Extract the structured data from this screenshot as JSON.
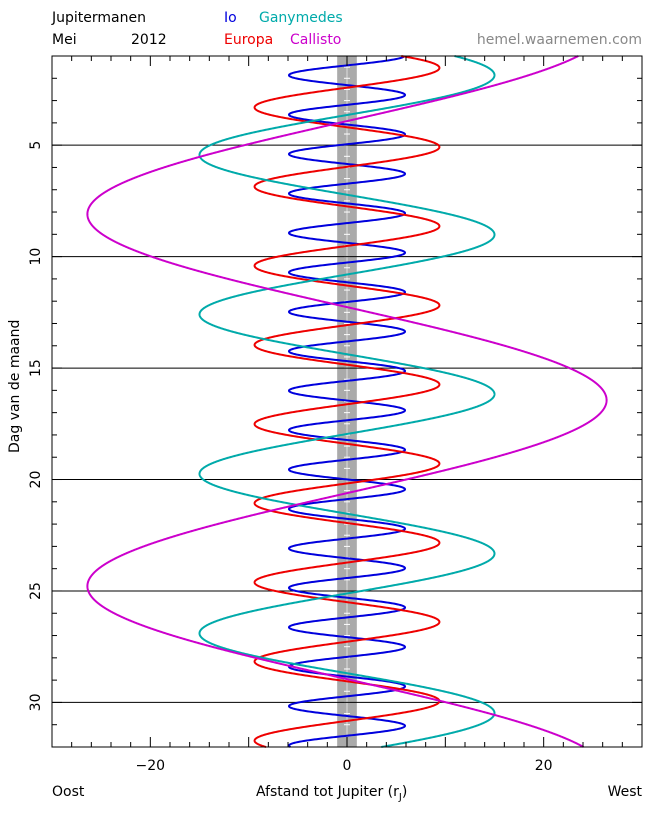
{
  "header": {
    "title": "Jupitermanen",
    "month": "Mei",
    "year": "2012",
    "website": "hemel.waarnemen.com"
  },
  "chart_data": {
    "type": "line",
    "xlabel": "Afstand tot Jupiter (r",
    "xlabel_sub": "J",
    "xlabel_close": ")",
    "ylabel": "Dag van de maand",
    "left_label": "Oost",
    "right_label": "West",
    "xlim": [
      -30,
      30
    ],
    "ylim": [
      32,
      1
    ],
    "xticks": [
      -20,
      0,
      20
    ],
    "yticks": [
      5,
      10,
      15,
      20,
      25,
      30
    ],
    "day_lines": [
      5,
      10,
      15,
      20,
      25,
      30
    ],
    "jupiter_band": [
      -1,
      1
    ],
    "series": [
      {
        "name": "Io",
        "color": "#0000dd",
        "amplitude": 5.9,
        "period_days": 1.769,
        "phase": 0.262
      },
      {
        "name": "Europa",
        "color": "#ee0000",
        "amplitude": 9.4,
        "period_days": 3.551,
        "phase": 0.1
      },
      {
        "name": "Ganymedes",
        "color": "#00aaaa",
        "amplitude": 15.0,
        "period_days": 7.155,
        "phase": 0.13
      },
      {
        "name": "Callisto",
        "color": "#cc00cc",
        "amplitude": 26.4,
        "period_days": 16.69,
        "phase": 0.325
      }
    ]
  }
}
